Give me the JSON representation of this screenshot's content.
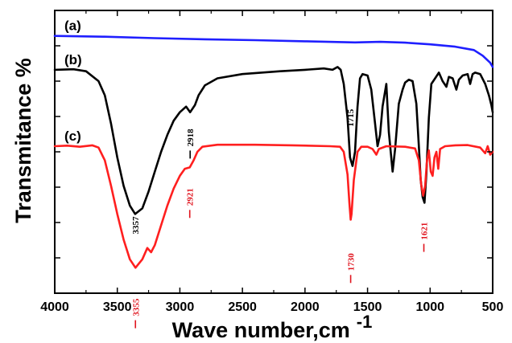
{
  "chart_data": {
    "type": "line",
    "xlabel": "Wave number,cm",
    "xlabel_superscript": "-1",
    "ylabel": "Transmitance %",
    "xlim": [
      4000,
      500
    ],
    "x_reversed": true,
    "ylim": [
      0,
      100
    ],
    "y_tick_labels_shown": false,
    "grid": false,
    "x_ticks": [
      "4000",
      "3500",
      "3000",
      "2500",
      "2000",
      "1500",
      "1000",
      "500"
    ],
    "series": [
      {
        "name": "(a)",
        "color": "#1f1fff",
        "points": [
          [
            4000,
            91.0
          ],
          [
            3600,
            90.7
          ],
          [
            3200,
            90.2
          ],
          [
            2800,
            89.8
          ],
          [
            2400,
            89.5
          ],
          [
            2000,
            89.1
          ],
          [
            1600,
            88.7
          ],
          [
            1400,
            88.9
          ],
          [
            1200,
            88.6
          ],
          [
            1000,
            88.0
          ],
          [
            800,
            87.2
          ],
          [
            650,
            86.0
          ],
          [
            580,
            84.0
          ],
          [
            520,
            81.5
          ],
          [
            500,
            80.0
          ]
        ]
      },
      {
        "name": "(b)",
        "color": "#000000",
        "points": [
          [
            4000,
            79.0
          ],
          [
            3850,
            79.2
          ],
          [
            3750,
            78.5
          ],
          [
            3650,
            75.0
          ],
          [
            3600,
            70.0
          ],
          [
            3550,
            60.0
          ],
          [
            3500,
            48.0
          ],
          [
            3450,
            38.0
          ],
          [
            3400,
            31.0
          ],
          [
            3357,
            28.0
          ],
          [
            3300,
            30.0
          ],
          [
            3250,
            36.0
          ],
          [
            3200,
            43.0
          ],
          [
            3150,
            50.0
          ],
          [
            3100,
            56.0
          ],
          [
            3050,
            61.0
          ],
          [
            3000,
            64.0
          ],
          [
            2950,
            66.0
          ],
          [
            2918,
            64.0
          ],
          [
            2880,
            66.5
          ],
          [
            2850,
            70.0
          ],
          [
            2800,
            73.5
          ],
          [
            2700,
            76.0
          ],
          [
            2500,
            77.5
          ],
          [
            2200,
            78.5
          ],
          [
            2000,
            79.0
          ],
          [
            1850,
            79.5
          ],
          [
            1780,
            79.0
          ],
          [
            1740,
            80.0
          ],
          [
            1715,
            79.0
          ],
          [
            1690,
            74.0
          ],
          [
            1660,
            62.0
          ],
          [
            1640,
            48.0
          ],
          [
            1620,
            45.0
          ],
          [
            1600,
            50.0
          ],
          [
            1580,
            66.0
          ],
          [
            1560,
            76.0
          ],
          [
            1540,
            77.5
          ],
          [
            1500,
            77.0
          ],
          [
            1470,
            72.0
          ],
          [
            1440,
            60.0
          ],
          [
            1420,
            52.0
          ],
          [
            1400,
            56.0
          ],
          [
            1380,
            66.0
          ],
          [
            1350,
            74.0
          ],
          [
            1330,
            57.0
          ],
          [
            1300,
            43.0
          ],
          [
            1280,
            51.0
          ],
          [
            1250,
            67.0
          ],
          [
            1220,
            72.0
          ],
          [
            1200,
            74.5
          ],
          [
            1170,
            75.5
          ],
          [
            1140,
            75.0
          ],
          [
            1110,
            67.0
          ],
          [
            1090,
            52.0
          ],
          [
            1075,
            40.0
          ],
          [
            1060,
            34.0
          ],
          [
            1045,
            32.0
          ],
          [
            1030,
            42.0
          ],
          [
            1010,
            62.0
          ],
          [
            990,
            74.0
          ],
          [
            960,
            76.0
          ],
          [
            930,
            78.0
          ],
          [
            900,
            75.0
          ],
          [
            870,
            73.0
          ],
          [
            850,
            76.5
          ],
          [
            820,
            76.0
          ],
          [
            790,
            72.0
          ],
          [
            770,
            75.5
          ],
          [
            740,
            77.0
          ],
          [
            700,
            77.5
          ],
          [
            680,
            74.0
          ],
          [
            660,
            77.5
          ],
          [
            640,
            78.0
          ],
          [
            600,
            77.5
          ],
          [
            560,
            74.0
          ],
          [
            530,
            70.0
          ],
          [
            510,
            66.5
          ],
          [
            500,
            64.0
          ]
        ]
      },
      {
        "name": "(c)",
        "color": "#ff1f1f",
        "points": [
          [
            4000,
            52.0
          ],
          [
            3900,
            52.2
          ],
          [
            3800,
            51.8
          ],
          [
            3700,
            52.3
          ],
          [
            3650,
            51.5
          ],
          [
            3600,
            47.0
          ],
          [
            3550,
            38.0
          ],
          [
            3500,
            28.0
          ],
          [
            3450,
            19.0
          ],
          [
            3400,
            12.0
          ],
          [
            3355,
            9.0
          ],
          [
            3300,
            12.0
          ],
          [
            3260,
            16.0
          ],
          [
            3230,
            14.5
          ],
          [
            3200,
            17.0
          ],
          [
            3150,
            24.0
          ],
          [
            3100,
            31.0
          ],
          [
            3050,
            37.0
          ],
          [
            3000,
            41.5
          ],
          [
            2960,
            44.0
          ],
          [
            2921,
            44.5
          ],
          [
            2890,
            47.0
          ],
          [
            2860,
            50.0
          ],
          [
            2820,
            51.8
          ],
          [
            2700,
            52.5
          ],
          [
            2400,
            52.5
          ],
          [
            2100,
            52.3
          ],
          [
            1800,
            52.0
          ],
          [
            1720,
            51.8
          ],
          [
            1690,
            50.0
          ],
          [
            1660,
            42.0
          ],
          [
            1645,
            32.0
          ],
          [
            1635,
            26.0
          ],
          [
            1628,
            28.0
          ],
          [
            1610,
            40.0
          ],
          [
            1580,
            50.0
          ],
          [
            1550,
            51.8
          ],
          [
            1500,
            51.8
          ],
          [
            1460,
            51.0
          ],
          [
            1430,
            49.0
          ],
          [
            1410,
            51.0
          ],
          [
            1350,
            52.0
          ],
          [
            1200,
            51.8
          ],
          [
            1120,
            51.2
          ],
          [
            1090,
            47.0
          ],
          [
            1070,
            38.0
          ],
          [
            1055,
            34.5
          ],
          [
            1040,
            38.0
          ],
          [
            1025,
            47.0
          ],
          [
            1010,
            50.5
          ],
          [
            995,
            43.0
          ],
          [
            980,
            41.5
          ],
          [
            965,
            48.0
          ],
          [
            950,
            50.0
          ],
          [
            935,
            44.0
          ],
          [
            920,
            51.0
          ],
          [
            880,
            52.0
          ],
          [
            800,
            52.3
          ],
          [
            700,
            52.4
          ],
          [
            600,
            51.5
          ],
          [
            560,
            49.5
          ],
          [
            540,
            52.0
          ],
          [
            520,
            49.0
          ],
          [
            500,
            50.0
          ]
        ]
      }
    ],
    "series_tags": [
      "(a)",
      "(b)",
      "(c)"
    ],
    "annotations": [
      {
        "text": "1715",
        "series": "(b)",
        "x": 1640,
        "y": 62,
        "color": "#000000",
        "rotate": true,
        "marker": false
      },
      {
        "text": "2918",
        "series": "(b)",
        "x": 2918,
        "y": 55,
        "color": "#000000",
        "rotate": true,
        "marker": true
      },
      {
        "text": "3357",
        "series": "(b)",
        "x": 3357,
        "y": 24,
        "color": "#000000",
        "rotate": true,
        "marker": false
      },
      {
        "text": "2921",
        "series": "(c)",
        "x": 2921,
        "y": 34,
        "color": "#e0141e",
        "rotate": true,
        "marker": true
      },
      {
        "text": "3355",
        "series": "(c)",
        "x": 3355,
        "y": -5,
        "color": "#e0141e",
        "rotate": true,
        "marker": true
      },
      {
        "text": "1730",
        "series": "(c)",
        "x": 1635,
        "y": 11,
        "color": "#e0141e",
        "rotate": true,
        "marker": true
      },
      {
        "text": "1621",
        "series": "(c)",
        "x": 1050,
        "y": 22,
        "color": "#e0141e",
        "rotate": true,
        "marker": true
      }
    ]
  }
}
